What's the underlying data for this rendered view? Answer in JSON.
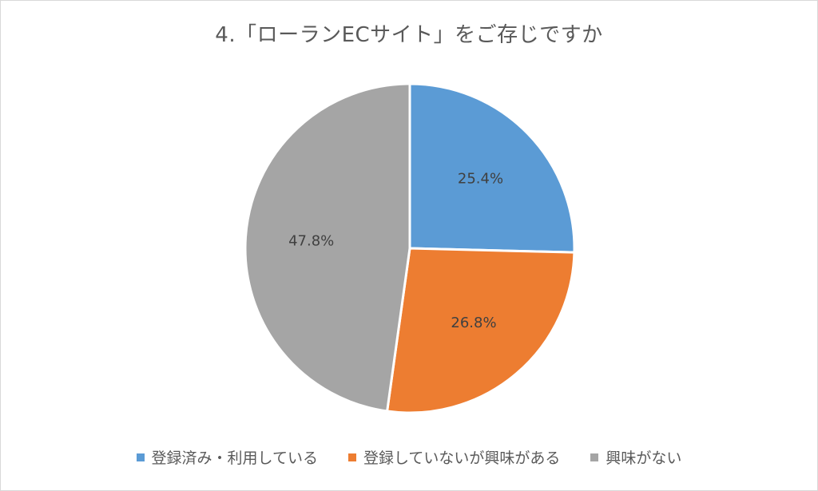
{
  "chart_data": {
    "type": "pie",
    "title": "4.「ローランECサイト」をご存じですか",
    "categories": [
      "登録済み・利用している",
      "登録していないが興味がある",
      "興味がない"
    ],
    "values": [
      25.4,
      26.8,
      47.8
    ],
    "labels": [
      "25.4%",
      "26.8%",
      "47.8%"
    ],
    "colors": [
      "#5B9BD5",
      "#ED7D31",
      "#A5A5A5"
    ],
    "legend_position": "bottom"
  }
}
